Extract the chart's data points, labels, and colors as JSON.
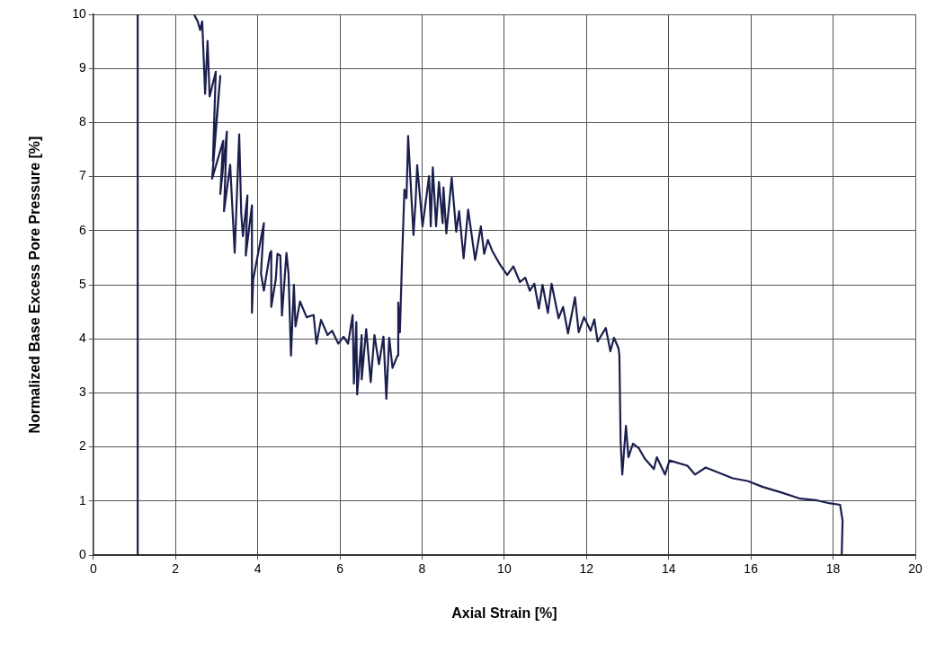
{
  "chart_data": {
    "type": "line",
    "xlabel": "Axial Strain [%]",
    "ylabel": "Normalized Base Excess Pore Pressure [%]",
    "xlim": [
      0,
      20
    ],
    "xticks": [
      0,
      2,
      4,
      6,
      8,
      10,
      12,
      14,
      16,
      18,
      20
    ],
    "ylim": [
      0,
      10
    ],
    "yticks": [
      0,
      1,
      2,
      3,
      4,
      5,
      6,
      7,
      8,
      9,
      10
    ],
    "grid": true,
    "marker": "none",
    "line_style": "solid",
    "x": [
      1.08,
      1.08,
      null,
      2.45,
      2.54,
      2.6,
      2.65,
      2.72,
      2.78,
      2.83,
      2.98,
      2.91,
      3.09,
      2.89,
      3.16,
      3.09,
      3.25,
      3.18,
      3.33,
      3.44,
      3.55,
      3.6,
      3.64,
      3.75,
      3.71,
      3.86,
      3.86,
      3.89,
      4.15,
      4.08,
      4.15,
      4.3,
      4.33,
      4.33,
      4.44,
      4.48,
      4.55,
      4.59,
      4.7,
      4.75,
      4.81,
      4.88,
      4.92,
      5.03,
      5.19,
      5.36,
      5.43,
      5.54,
      5.7,
      5.81,
      5.96,
      6.09,
      6.2,
      6.31,
      6.34,
      6.4,
      6.42,
      6.53,
      6.53,
      6.64,
      6.75,
      6.84,
      6.95,
      7.06,
      7.13,
      7.2,
      7.28,
      7.4,
      7.42,
      7.46,
      7.51,
      7.57,
      7.62,
      7.66,
      7.79,
      7.84,
      7.88,
      8.01,
      8.17,
      8.21,
      8.26,
      8.34,
      8.41,
      8.5,
      8.52,
      8.59,
      8.72,
      8.83,
      8.9,
      9.01,
      9.12,
      9.29,
      9.43,
      9.51,
      9.6,
      9.71,
      9.89,
      10.07,
      10.22,
      10.38,
      10.51,
      10.62,
      10.73,
      10.84,
      10.93,
      11.06,
      11.15,
      11.32,
      11.43,
      11.55,
      11.72,
      11.81,
      11.94,
      12.1,
      12.19,
      12.27,
      12.47,
      12.58,
      12.67,
      12.78,
      12.8,
      12.83,
      12.87,
      12.96,
      13.02,
      13.13,
      13.27,
      13.42,
      13.64,
      13.71,
      13.91,
      14.02,
      14.46,
      14.64,
      14.9,
      15.56,
      15.92,
      16.29,
      16.73,
      17.17,
      17.62,
      17.9,
      18.17,
      18.23,
      18.21
    ],
    "values": [
      0,
      10,
      null,
      10,
      9.87,
      9.71,
      9.87,
      8.53,
      9.51,
      8.48,
      8.94,
      7.29,
      8.86,
      6.96,
      7.66,
      6.68,
      7.83,
      6.36,
      7.22,
      5.59,
      7.78,
      6.31,
      5.9,
      6.65,
      5.54,
      6.47,
      4.48,
      5.1,
      6.14,
      5.21,
      4.89,
      5.59,
      5.62,
      4.59,
      5.1,
      5.57,
      5.54,
      4.43,
      5.59,
      5.2,
      3.69,
      5,
      4.23,
      4.69,
      4.4,
      4.44,
      3.91,
      4.35,
      4.07,
      4.15,
      3.91,
      4.04,
      3.91,
      4.44,
      3.17,
      4.31,
      2.97,
      4.07,
      3.25,
      4.18,
      3.2,
      4.07,
      3.53,
      4.04,
      2.89,
      4.02,
      3.46,
      3.69,
      4.67,
      4.12,
      5.42,
      6.76,
      6.6,
      7.75,
      5.92,
      6.52,
      7.21,
      6.08,
      7.01,
      6.08,
      7.17,
      6.08,
      6.9,
      6.14,
      6.8,
      5.95,
      6.98,
      5.98,
      6.36,
      5.49,
      6.39,
      5.46,
      6.08,
      5.57,
      5.83,
      5.62,
      5.38,
      5.18,
      5.34,
      5.05,
      5.13,
      4.89,
      5.02,
      4.56,
      5,
      4.48,
      5.02,
      4.38,
      4.59,
      4.1,
      4.77,
      4.12,
      4.4,
      4.15,
      4.36,
      3.95,
      4.2,
      3.77,
      4.02,
      3.82,
      3.69,
      2.11,
      1.49,
      2.39,
      1.81,
      2.06,
      1.98,
      1.78,
      1.59,
      1.81,
      1.49,
      1.75,
      1.65,
      1.49,
      1.62,
      1.42,
      1.37,
      1.26,
      1.16,
      1.05,
      1.01,
      0.96,
      0.93,
      0.64,
      0
    ],
    "color": "#1a1f4d"
  }
}
